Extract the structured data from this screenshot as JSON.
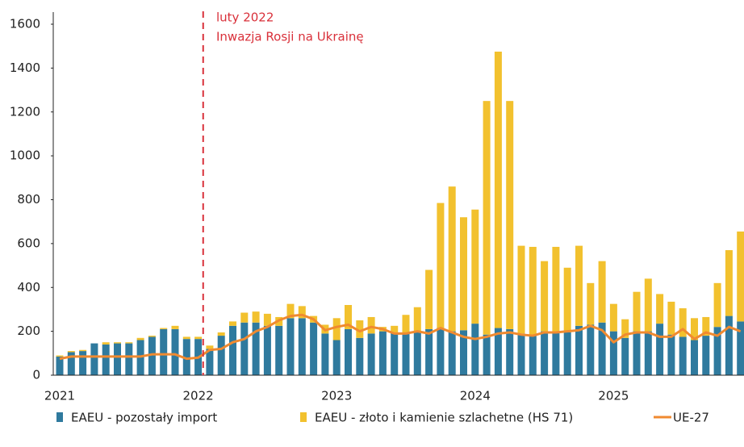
{
  "chart_data": {
    "type": "bar",
    "stacked": true,
    "annotation": [
      "luty 2022",
      "Inwazja Rosji na Ukrainę"
    ],
    "categories": [
      "2021",
      null,
      null,
      null,
      null,
      null,
      null,
      null,
      null,
      null,
      null,
      null,
      "2022",
      null,
      null,
      null,
      null,
      null,
      null,
      null,
      null,
      null,
      null,
      null,
      "2023",
      null,
      null,
      null,
      null,
      null,
      null,
      null,
      null,
      null,
      null,
      null,
      "2024",
      null,
      null,
      null,
      null,
      null,
      null,
      null,
      null,
      null,
      null,
      null,
      "2025",
      null,
      null,
      null,
      null,
      null,
      null,
      null,
      null,
      null,
      null,
      null
    ],
    "series": [
      {
        "name": "EAEU - pozostały import",
        "color": "#2f7a9e",
        "values": [
          85,
          105,
          110,
          145,
          140,
          145,
          145,
          160,
          175,
          210,
          210,
          165,
          165,
          120,
          180,
          225,
          240,
          240,
          225,
          225,
          260,
          260,
          240,
          190,
          160,
          210,
          170,
          190,
          200,
          195,
          190,
          200,
          210,
          215,
          200,
          205,
          235,
          185,
          215,
          210,
          190,
          180,
          200,
          200,
          195,
          225,
          230,
          240,
          200,
          170,
          200,
          200,
          235,
          185,
          175,
          160,
          180,
          220,
          270,
          245
        ]
      },
      {
        "name": "EAEU - złoto i kamienie szlachetne (HS 71)",
        "color": "#f2c12e",
        "values": [
          5,
          5,
          5,
          0,
          10,
          5,
          5,
          10,
          5,
          5,
          15,
          10,
          10,
          15,
          15,
          20,
          45,
          50,
          55,
          40,
          65,
          55,
          30,
          40,
          100,
          110,
          80,
          75,
          20,
          30,
          85,
          110,
          270,
          570,
          660,
          515,
          520,
          1065,
          1260,
          1040,
          400,
          405,
          320,
          385,
          295,
          365,
          190,
          280,
          125,
          85,
          180,
          240,
          135,
          150,
          130,
          100,
          85,
          200,
          300,
          410
        ]
      },
      {
        "name": "UE-27",
        "color": "#f08a30",
        "type": "line",
        "values": [
          75,
          85,
          85,
          85,
          85,
          85,
          85,
          85,
          95,
          95,
          95,
          75,
          80,
          115,
          120,
          150,
          165,
          200,
          220,
          250,
          270,
          275,
          255,
          205,
          220,
          230,
          200,
          220,
          210,
          190,
          190,
          200,
          190,
          215,
          195,
          175,
          165,
          175,
          190,
          195,
          185,
          180,
          195,
          195,
          200,
          205,
          225,
          205,
          150,
          185,
          195,
          195,
          175,
          175,
          210,
          165,
          195,
          180,
          220,
          200
        ]
      }
    ],
    "ylim": [
      0,
      1600
    ],
    "yticks": [
      0,
      200,
      400,
      600,
      800,
      1000,
      1200,
      1400,
      1600
    ]
  }
}
